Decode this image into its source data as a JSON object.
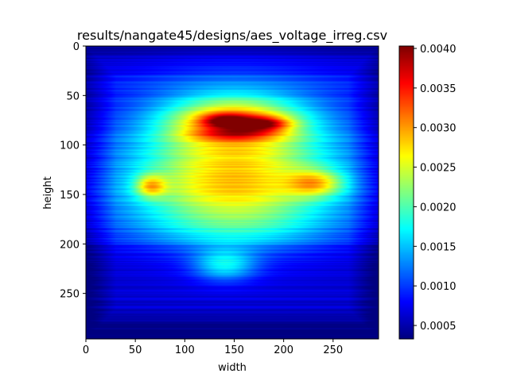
{
  "chart_data": {
    "type": "heatmap",
    "title": "results/nangate45/designs/aes_voltage_irreg.csv",
    "xlabel": "width",
    "ylabel": "height",
    "xlim": [
      0,
      296
    ],
    "ylim": [
      296,
      0
    ],
    "x_ticks": [
      0,
      50,
      100,
      150,
      200,
      250
    ],
    "y_ticks": [
      0,
      50,
      100,
      150,
      200,
      250
    ],
    "colormap": "jet",
    "value_range": [
      0.00033,
      0.00403
    ],
    "colorbar_ticks": [
      "0.0005",
      "0.0010",
      "0.0015",
      "0.0020",
      "0.0025",
      "0.0030",
      "0.0035",
      "0.0040"
    ],
    "colorbar_tick_values": [
      0.0005,
      0.001,
      0.0015,
      0.002,
      0.0025,
      0.003,
      0.0035,
      0.004
    ],
    "background_level": 0.00075,
    "features": [
      {
        "cx": 150,
        "cy": 120,
        "rx": 105,
        "ry": 70,
        "peak": 0.0019
      },
      {
        "cx": 145,
        "cy": 150,
        "rx": 130,
        "ry": 30,
        "peak": 0.0004
      },
      {
        "cx": 150,
        "cy": 75,
        "rx": 65,
        "ry": 22,
        "peak": 0.0014
      },
      {
        "cx": 140,
        "cy": 75,
        "rx": 24,
        "ry": 7,
        "peak": 0.0011
      },
      {
        "cx": 180,
        "cy": 78,
        "rx": 26,
        "ry": 7,
        "peak": 0.0012
      },
      {
        "cx": 150,
        "cy": 88,
        "rx": 45,
        "ry": 6,
        "peak": 0.0006
      },
      {
        "cx": 65,
        "cy": 141,
        "rx": 15,
        "ry": 11,
        "peak": 0.0011
      },
      {
        "cx": 232,
        "cy": 138,
        "rx": 28,
        "ry": 13,
        "peak": 0.0011
      },
      {
        "cx": 140,
        "cy": 221,
        "rx": 32,
        "ry": 16,
        "peak": 0.0009
      },
      {
        "cx": 150,
        "cy": 185,
        "rx": 110,
        "ry": 20,
        "peak": 0.0003
      }
    ]
  }
}
